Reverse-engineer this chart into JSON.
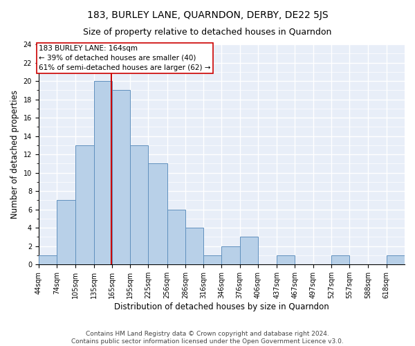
{
  "title": "183, BURLEY LANE, QUARNDON, DERBY, DE22 5JS",
  "subtitle": "Size of property relative to detached houses in Quarndon",
  "xlabel": "Distribution of detached houses by size in Quarndon",
  "ylabel": "Number of detached properties",
  "bar_color": "#b8d0e8",
  "bar_edge_color": "#6090be",
  "background_color": "#e8eef8",
  "grid_color": "#ffffff",
  "bin_edges": [
    44,
    74,
    105,
    135,
    165,
    195,
    225,
    256,
    286,
    316,
    346,
    376,
    406,
    437,
    467,
    497,
    527,
    557,
    588,
    618,
    648
  ],
  "counts": [
    1,
    7,
    13,
    20,
    19,
    13,
    11,
    6,
    4,
    1,
    2,
    3,
    0,
    1,
    0,
    0,
    1,
    0,
    0,
    1
  ],
  "property_size": 164,
  "property_label": "183 BURLEY LANE: 164sqm",
  "annotation_line1": "← 39% of detached houses are smaller (40)",
  "annotation_line2": "61% of semi-detached houses are larger (62) →",
  "ylim": [
    0,
    24
  ],
  "yticks": [
    0,
    2,
    4,
    6,
    8,
    10,
    12,
    14,
    16,
    18,
    20,
    22,
    24
  ],
  "footer_line1": "Contains HM Land Registry data © Crown copyright and database right 2024.",
  "footer_line2": "Contains public sector information licensed under the Open Government Licence v3.0.",
  "vline_color": "#cc0000",
  "box_edge_color": "#cc0000",
  "title_fontsize": 10,
  "subtitle_fontsize": 9,
  "tick_fontsize": 7,
  "label_fontsize": 8.5,
  "footer_fontsize": 6.5,
  "annotation_fontsize": 7.5
}
